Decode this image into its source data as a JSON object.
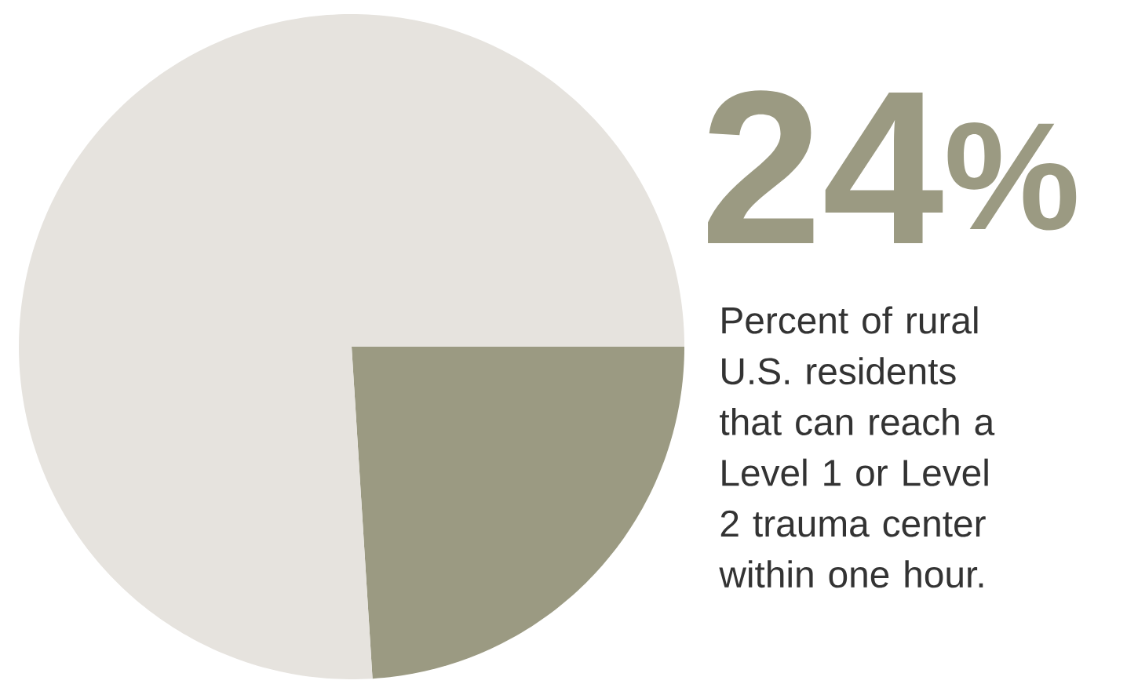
{
  "chart_data": {
    "type": "pie",
    "categories": [
      null,
      null
    ],
    "values": [
      24,
      76
    ],
    "colors": [
      "#9b9a82",
      "#e6e3de"
    ],
    "value_labels": [
      "24$^{%}$",
      null
    ],
    "annotations": [
      "Percent of rural U.S. residents that can reach a Level 1 or Level 2 trauma center within one hour."
    ]
  }
}
